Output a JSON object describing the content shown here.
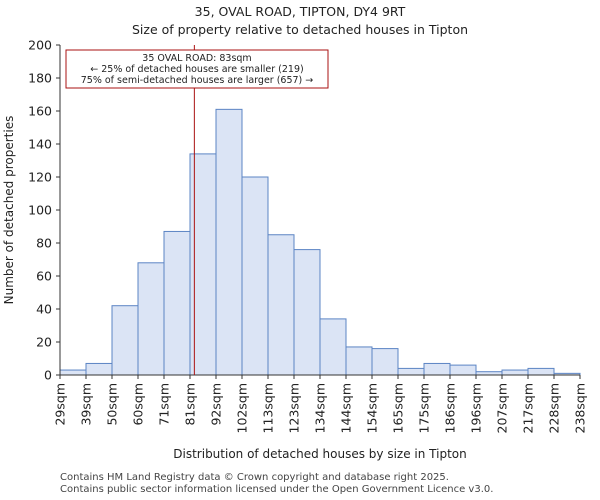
{
  "header": {
    "title": "35, OVAL ROAD, TIPTON, DY4 9RT",
    "subtitle": "Size of property relative to detached houses in Tipton"
  },
  "chart_data": {
    "type": "bar",
    "title": "35, OVAL ROAD, TIPTON, DY4 9RT",
    "subtitle": "Size of property relative to detached houses in Tipton",
    "xlabel": "Distribution of detached houses by size in Tipton",
    "ylabel": "Number of detached properties",
    "ylim": [
      0,
      200
    ],
    "yticks": [
      0,
      20,
      40,
      60,
      80,
      100,
      120,
      140,
      160,
      180,
      200
    ],
    "xlim": [
      29,
      238
    ],
    "tick_labels": [
      "29sqm",
      "39sqm",
      "50sqm",
      "60sqm",
      "71sqm",
      "81sqm",
      "92sqm",
      "102sqm",
      "113sqm",
      "123sqm",
      "134sqm",
      "144sqm",
      "154sqm",
      "165sqm",
      "175sqm",
      "186sqm",
      "196sqm",
      "207sqm",
      "217sqm",
      "228sqm",
      "238sqm"
    ],
    "values": [
      3,
      7,
      42,
      68,
      87,
      134,
      161,
      120,
      85,
      76,
      34,
      17,
      16,
      4,
      7,
      6,
      2,
      3,
      4,
      1
    ],
    "bar_color": "#dbe4f5",
    "bar_edge_color": "#5b84c4",
    "marker": {
      "value": 83,
      "color": "#aa1111",
      "annotation": [
        "35 OVAL ROAD: 83sqm",
        "← 25% of detached houses are smaller (219)",
        "75% of semi-detached houses are larger (657) →"
      ]
    }
  },
  "footer": {
    "line1": "Contains HM Land Registry data © Crown copyright and database right 2025.",
    "line2": "Contains public sector information licensed under the Open Government Licence v3.0."
  }
}
